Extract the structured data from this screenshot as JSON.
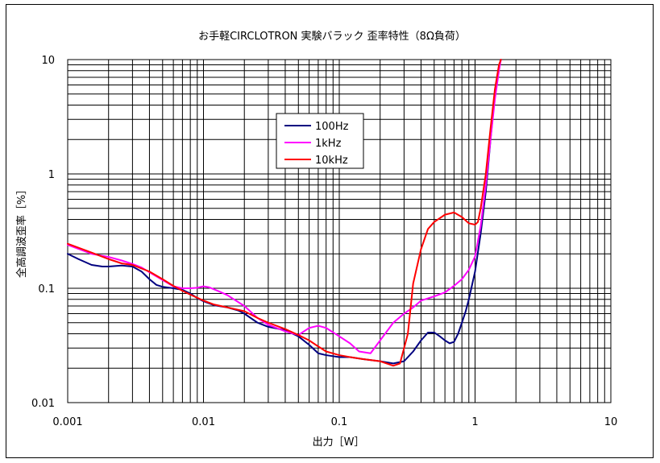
{
  "chart_data": {
    "type": "line",
    "title": "お手軽CIRCLOTRON 実験バラック 歪率特性（8Ω負荷）",
    "xlabel": "出力［W］",
    "ylabel": "全高調波歪率［%］",
    "x_scale": "log",
    "y_scale": "log",
    "xlim": [
      0.001,
      10
    ],
    "ylim": [
      0.01,
      10
    ],
    "x_ticks": [
      {
        "value": 0.001,
        "label": "0.001"
      },
      {
        "value": 0.01,
        "label": "0.01"
      },
      {
        "value": 0.1,
        "label": "0.1"
      },
      {
        "value": 1,
        "label": "1"
      },
      {
        "value": 10,
        "label": "10"
      }
    ],
    "y_ticks": [
      {
        "value": 10,
        "label": "10"
      },
      {
        "value": 1,
        "label": "1"
      },
      {
        "value": 0.1,
        "label": "0.1"
      },
      {
        "value": 0.01,
        "label": "0.01"
      }
    ],
    "grid": true,
    "legend_position": "top-center",
    "series": [
      {
        "name": "100Hz",
        "color": "#000080",
        "points": [
          [
            0.001,
            0.2
          ],
          [
            0.0012,
            0.18
          ],
          [
            0.0015,
            0.16
          ],
          [
            0.0018,
            0.155
          ],
          [
            0.002,
            0.155
          ],
          [
            0.0025,
            0.158
          ],
          [
            0.003,
            0.155
          ],
          [
            0.0035,
            0.14
          ],
          [
            0.004,
            0.12
          ],
          [
            0.0045,
            0.107
          ],
          [
            0.005,
            0.103
          ],
          [
            0.006,
            0.1
          ],
          [
            0.007,
            0.097
          ],
          [
            0.008,
            0.09
          ],
          [
            0.009,
            0.082
          ],
          [
            0.01,
            0.077
          ],
          [
            0.012,
            0.071
          ],
          [
            0.015,
            0.068
          ],
          [
            0.018,
            0.064
          ],
          [
            0.02,
            0.06
          ],
          [
            0.025,
            0.05
          ],
          [
            0.03,
            0.046
          ],
          [
            0.04,
            0.043
          ],
          [
            0.05,
            0.038
          ],
          [
            0.06,
            0.032
          ],
          [
            0.07,
            0.027
          ],
          [
            0.08,
            0.026
          ],
          [
            0.1,
            0.025
          ],
          [
            0.12,
            0.025
          ],
          [
            0.15,
            0.024
          ],
          [
            0.2,
            0.023
          ],
          [
            0.25,
            0.022
          ],
          [
            0.3,
            0.023
          ],
          [
            0.35,
            0.028
          ],
          [
            0.4,
            0.035
          ],
          [
            0.45,
            0.041
          ],
          [
            0.5,
            0.041
          ],
          [
            0.55,
            0.038
          ],
          [
            0.6,
            0.035
          ],
          [
            0.65,
            0.033
          ],
          [
            0.7,
            0.034
          ],
          [
            0.75,
            0.04
          ],
          [
            0.8,
            0.05
          ],
          [
            0.85,
            0.062
          ],
          [
            0.9,
            0.08
          ],
          [
            1.0,
            0.14
          ],
          [
            1.1,
            0.3
          ],
          [
            1.2,
            0.7
          ],
          [
            1.3,
            2.0
          ],
          [
            1.4,
            5.0
          ],
          [
            1.5,
            8.5
          ],
          [
            1.55,
            10.0
          ]
        ]
      },
      {
        "name": "1kHz",
        "color": "#FF00FF",
        "points": [
          [
            0.001,
            0.24
          ],
          [
            0.0015,
            0.2
          ],
          [
            0.002,
            0.188
          ],
          [
            0.0025,
            0.175
          ],
          [
            0.003,
            0.163
          ],
          [
            0.0035,
            0.152
          ],
          [
            0.004,
            0.138
          ],
          [
            0.005,
            0.118
          ],
          [
            0.006,
            0.104
          ],
          [
            0.007,
            0.1
          ],
          [
            0.008,
            0.1
          ],
          [
            0.009,
            0.101
          ],
          [
            0.01,
            0.104
          ],
          [
            0.011,
            0.102
          ],
          [
            0.013,
            0.094
          ],
          [
            0.015,
            0.087
          ],
          [
            0.02,
            0.07
          ],
          [
            0.025,
            0.055
          ],
          [
            0.03,
            0.048
          ],
          [
            0.04,
            0.042
          ],
          [
            0.05,
            0.039
          ],
          [
            0.06,
            0.045
          ],
          [
            0.07,
            0.047
          ],
          [
            0.08,
            0.045
          ],
          [
            0.1,
            0.038
          ],
          [
            0.12,
            0.033
          ],
          [
            0.14,
            0.028
          ],
          [
            0.17,
            0.027
          ],
          [
            0.2,
            0.035
          ],
          [
            0.25,
            0.05
          ],
          [
            0.3,
            0.06
          ],
          [
            0.35,
            0.068
          ],
          [
            0.4,
            0.078
          ],
          [
            0.5,
            0.085
          ],
          [
            0.6,
            0.092
          ],
          [
            0.7,
            0.105
          ],
          [
            0.8,
            0.12
          ],
          [
            0.9,
            0.145
          ],
          [
            1.0,
            0.19
          ],
          [
            1.1,
            0.35
          ],
          [
            1.2,
            0.8
          ],
          [
            1.3,
            2.0
          ],
          [
            1.4,
            4.5
          ],
          [
            1.5,
            8.0
          ],
          [
            1.55,
            10.0
          ]
        ]
      },
      {
        "name": "10kHz",
        "color": "#FF0000",
        "points": [
          [
            0.001,
            0.245
          ],
          [
            0.0015,
            0.205
          ],
          [
            0.002,
            0.18
          ],
          [
            0.0025,
            0.165
          ],
          [
            0.003,
            0.16
          ],
          [
            0.004,
            0.14
          ],
          [
            0.005,
            0.12
          ],
          [
            0.006,
            0.105
          ],
          [
            0.007,
            0.095
          ],
          [
            0.008,
            0.088
          ],
          [
            0.01,
            0.078
          ],
          [
            0.012,
            0.072
          ],
          [
            0.015,
            0.068
          ],
          [
            0.02,
            0.063
          ],
          [
            0.025,
            0.055
          ],
          [
            0.03,
            0.05
          ],
          [
            0.04,
            0.044
          ],
          [
            0.05,
            0.039
          ],
          [
            0.06,
            0.035
          ],
          [
            0.07,
            0.031
          ],
          [
            0.08,
            0.028
          ],
          [
            0.1,
            0.026
          ],
          [
            0.12,
            0.025
          ],
          [
            0.15,
            0.024
          ],
          [
            0.2,
            0.023
          ],
          [
            0.25,
            0.021
          ],
          [
            0.28,
            0.022
          ],
          [
            0.32,
            0.04
          ],
          [
            0.35,
            0.11
          ],
          [
            0.4,
            0.22
          ],
          [
            0.45,
            0.33
          ],
          [
            0.5,
            0.38
          ],
          [
            0.6,
            0.44
          ],
          [
            0.7,
            0.46
          ],
          [
            0.8,
            0.42
          ],
          [
            0.9,
            0.37
          ],
          [
            1.0,
            0.36
          ],
          [
            1.05,
            0.38
          ],
          [
            1.1,
            0.5
          ],
          [
            1.2,
            1.0
          ],
          [
            1.3,
            2.5
          ],
          [
            1.4,
            5.5
          ],
          [
            1.5,
            9.0
          ],
          [
            1.55,
            10.0
          ]
        ]
      }
    ]
  }
}
